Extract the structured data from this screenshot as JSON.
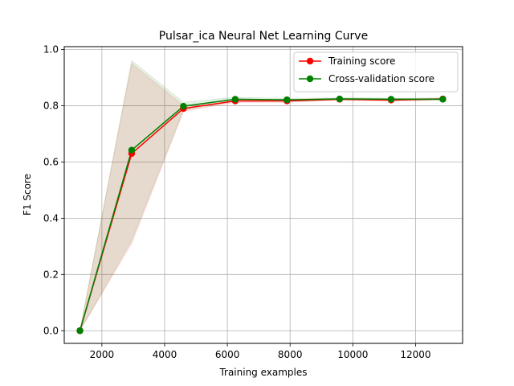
{
  "chart_data": {
    "type": "line",
    "title": "Pulsar_ica Neural Net Learning Curve",
    "xlabel": "Training examples",
    "ylabel": "F1 Score",
    "xlim": [
      800,
      13500
    ],
    "ylim": [
      -0.045,
      1.01
    ],
    "xticks": [
      2000,
      4000,
      6000,
      8000,
      10000,
      12000
    ],
    "yticks": [
      0.0,
      0.2,
      0.4,
      0.6,
      0.8,
      1.0
    ],
    "grid": true,
    "legend_position": "top-right",
    "x": [
      1300,
      2950,
      4600,
      6250,
      7900,
      9580,
      11220,
      12870
    ],
    "series": [
      {
        "name": "Training score",
        "color": "#ff0000",
        "fill_color": "#ff0000",
        "values": [
          0.0,
          0.63,
          0.79,
          0.817,
          0.817,
          0.823,
          0.82,
          0.824
        ],
        "band_upper": [
          0.0,
          0.95,
          0.8,
          0.822,
          0.822,
          0.826,
          0.824,
          0.827
        ],
        "band_lower": [
          0.0,
          0.31,
          0.78,
          0.812,
          0.812,
          0.82,
          0.816,
          0.821
        ]
      },
      {
        "name": "Cross-validation score",
        "color": "#008000",
        "fill_color": "#008000",
        "values": [
          0.0,
          0.642,
          0.798,
          0.823,
          0.821,
          0.824,
          0.823,
          0.823
        ],
        "band_upper": [
          0.0,
          0.96,
          0.812,
          0.83,
          0.826,
          0.828,
          0.827,
          0.827
        ],
        "band_lower": [
          0.0,
          0.322,
          0.784,
          0.816,
          0.816,
          0.82,
          0.819,
          0.819
        ]
      }
    ]
  }
}
